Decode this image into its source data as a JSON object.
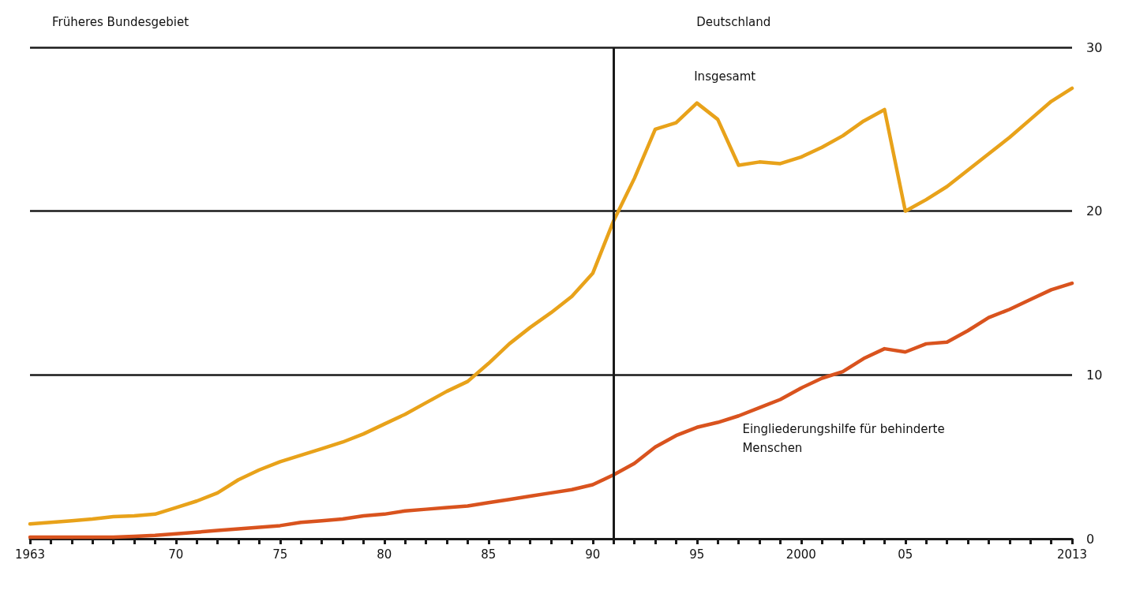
{
  "chart_data": {
    "type": "line",
    "x": [
      1963,
      1964,
      1965,
      1966,
      1967,
      1968,
      1969,
      1970,
      1971,
      1972,
      1973,
      1974,
      1975,
      1976,
      1977,
      1978,
      1979,
      1980,
      1981,
      1982,
      1983,
      1984,
      1985,
      1986,
      1987,
      1988,
      1989,
      1990,
      1991,
      1992,
      1993,
      1994,
      1995,
      1996,
      1997,
      1998,
      1999,
      2000,
      2001,
      2002,
      2003,
      2004,
      2005,
      2006,
      2007,
      2008,
      2009,
      2010,
      2011,
      2012,
      2013
    ],
    "series": [
      {
        "name": "Insgesamt",
        "color": "#e8a21a",
        "values": [
          0.9,
          1.0,
          1.1,
          1.2,
          1.35,
          1.4,
          1.5,
          1.9,
          2.3,
          2.8,
          3.6,
          4.2,
          4.7,
          5.1,
          5.5,
          5.9,
          6.4,
          7.0,
          7.6,
          8.3,
          9.0,
          9.6,
          10.7,
          11.9,
          12.9,
          13.8,
          14.8,
          16.2,
          19.4,
          22.0,
          25.0,
          25.4,
          26.6,
          25.6,
          22.8,
          23.0,
          22.9,
          23.3,
          23.9,
          24.6,
          25.5,
          26.2,
          20.0,
          20.7,
          21.5,
          22.5,
          23.5,
          24.5,
          25.6,
          26.7,
          27.5
        ]
      },
      {
        "name": "Eingliederungshilfe für behinderte Menschen",
        "color": "#d9531e",
        "values": [
          0.1,
          0.1,
          0.1,
          0.1,
          0.1,
          0.15,
          0.2,
          0.3,
          0.4,
          0.5,
          0.6,
          0.7,
          0.8,
          1.0,
          1.1,
          1.2,
          1.4,
          1.5,
          1.7,
          1.8,
          1.9,
          2.0,
          2.2,
          2.4,
          2.6,
          2.8,
          3.0,
          3.3,
          3.9,
          4.6,
          5.6,
          6.3,
          6.8,
          7.1,
          7.5,
          8.0,
          8.5,
          9.2,
          9.8,
          10.2,
          11.0,
          11.6,
          11.4,
          11.9,
          12.0,
          12.7,
          13.5,
          14.0,
          14.6,
          15.2,
          15.6
        ]
      }
    ],
    "xlim": [
      1963,
      2013
    ],
    "xticks": [
      {
        "value": 1963,
        "label": "1963"
      },
      {
        "value": 1964,
        "label": null
      },
      {
        "value": 1965,
        "label": null
      },
      {
        "value": 1966,
        "label": null
      },
      {
        "value": 1967,
        "label": null
      },
      {
        "value": 1968,
        "label": null
      },
      {
        "value": 1969,
        "label": null
      },
      {
        "value": 1970,
        "label": "70"
      },
      {
        "value": 1971,
        "label": null
      },
      {
        "value": 1972,
        "label": null
      },
      {
        "value": 1973,
        "label": null
      },
      {
        "value": 1974,
        "label": null
      },
      {
        "value": 1975,
        "label": "75"
      },
      {
        "value": 1976,
        "label": null
      },
      {
        "value": 1977,
        "label": null
      },
      {
        "value": 1978,
        "label": null
      },
      {
        "value": 1979,
        "label": null
      },
      {
        "value": 1980,
        "label": "80"
      },
      {
        "value": 1981,
        "label": null
      },
      {
        "value": 1982,
        "label": null
      },
      {
        "value": 1983,
        "label": null
      },
      {
        "value": 1984,
        "label": null
      },
      {
        "value": 1985,
        "label": "85"
      },
      {
        "value": 1986,
        "label": null
      },
      {
        "value": 1987,
        "label": null
      },
      {
        "value": 1988,
        "label": null
      },
      {
        "value": 1989,
        "label": null
      },
      {
        "value": 1990,
        "label": "90"
      },
      {
        "value": 1991,
        "label": null
      },
      {
        "value": 1992,
        "label": null
      },
      {
        "value": 1993,
        "label": null
      },
      {
        "value": 1994,
        "label": null
      },
      {
        "value": 1995,
        "label": "95"
      },
      {
        "value": 1996,
        "label": null
      },
      {
        "value": 1997,
        "label": null
      },
      {
        "value": 1998,
        "label": null
      },
      {
        "value": 1999,
        "label": null
      },
      {
        "value": 2000,
        "label": "2000"
      },
      {
        "value": 2001,
        "label": null
      },
      {
        "value": 2002,
        "label": null
      },
      {
        "value": 2003,
        "label": null
      },
      {
        "value": 2004,
        "label": null
      },
      {
        "value": 2005,
        "label": "05"
      },
      {
        "value": 2006,
        "label": null
      },
      {
        "value": 2007,
        "label": null
      },
      {
        "value": 2008,
        "label": null
      },
      {
        "value": 2009,
        "label": null
      },
      {
        "value": 2010,
        "label": null
      },
      {
        "value": 2011,
        "label": null
      },
      {
        "value": 2012,
        "label": null
      },
      {
        "value": 2013,
        "label": "2013"
      }
    ],
    "ylim": [
      0,
      30
    ],
    "yticks": [
      0,
      10,
      20,
      30
    ],
    "grid": "y",
    "legend": false,
    "marker": "none",
    "line_style": "solid",
    "ref_lines": [
      {
        "axis": "x",
        "value": 1991,
        "color": "#1a1a1a"
      }
    ],
    "annotations": [
      "Früheres Bundesgebiet",
      "Deutschland"
    ]
  }
}
